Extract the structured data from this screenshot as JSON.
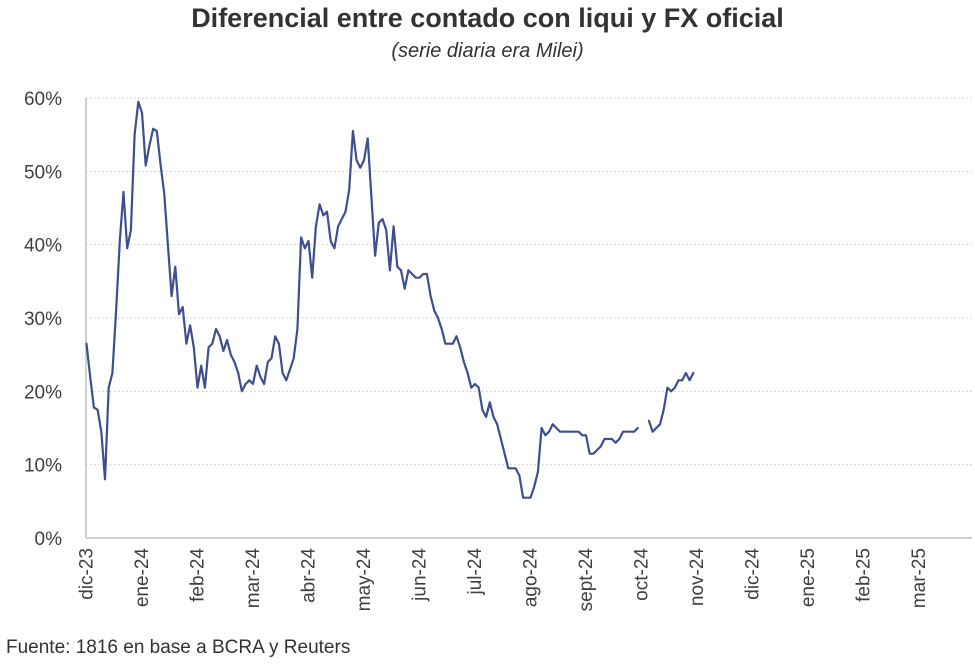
{
  "title": "Diferencial entre contado con liqui y FX oficial",
  "subtitle": "(serie diaria era Milei)",
  "source": "Fuente: 1816 en base a BCRA y Reuters",
  "chart_data": {
    "type": "line",
    "title": "Diferencial entre contado con liqui y FX oficial",
    "subtitle": "(serie diaria era Milei)",
    "xlabel": "",
    "ylabel": "",
    "y_unit": "%",
    "ylim": [
      0,
      60
    ],
    "y_ticks": [
      0,
      10,
      20,
      30,
      40,
      50,
      60
    ],
    "y_tick_labels": [
      "0%",
      "10%",
      "20%",
      "30%",
      "40%",
      "50%",
      "60%"
    ],
    "x_ticks": [
      "dic-23",
      "ene-24",
      "feb-24",
      "mar-24",
      "abr-24",
      "may-24",
      "jun-24",
      "jul-24",
      "ago-24",
      "sept-24",
      "oct-24",
      "nov-24",
      "dic-24",
      "ene-25",
      "feb-25",
      "mar-25"
    ],
    "grid": "horizontal dotted",
    "line_color": "#3d4f8f",
    "series": [
      {
        "values_by_month": [
          [
            26.5,
            22.0,
            17.8,
            17.5,
            14.5,
            8.0,
            20.5,
            22.5,
            31.0,
            40.5,
            47.2,
            39.5,
            42.0,
            55.0,
            59.5
          ],
          [
            58.0,
            50.8,
            53.5,
            55.8,
            55.5,
            51.0,
            47.0,
            40.0,
            33.0,
            37.0,
            30.5,
            31.5,
            26.5,
            29.0,
            26.0
          ],
          [
            20.5,
            23.5,
            20.5,
            26.0,
            26.5,
            28.5,
            27.5,
            25.5,
            27.0,
            25.0,
            24.0,
            22.5,
            20.0,
            21.0,
            21.5
          ],
          [
            21.0,
            23.5,
            22.0,
            21.0,
            24.0,
            24.5,
            27.5,
            26.5,
            22.5,
            21.5,
            23.0,
            24.5,
            28.5,
            41.0,
            39.5
          ],
          [
            40.5,
            35.5,
            42.5,
            45.5,
            44.0,
            44.5,
            40.5,
            39.5,
            42.5,
            43.5,
            44.5,
            47.5,
            55.5,
            51.5,
            50.5
          ],
          [
            51.5,
            54.5,
            46.5,
            38.5,
            43.0,
            43.5,
            42.0,
            36.5,
            42.5,
            37.0,
            36.5,
            34.0,
            36.5,
            36.0,
            35.5
          ],
          [
            35.5,
            36.0,
            36.0,
            33.0,
            31.0,
            30.0,
            28.5,
            26.5,
            26.5,
            26.5,
            27.5,
            26.0,
            24.0,
            22.5,
            20.5
          ],
          [
            21.0,
            20.5,
            17.5,
            16.5,
            18.5,
            16.5,
            15.5,
            13.5,
            11.5,
            9.5,
            9.5,
            9.5,
            8.5,
            5.5,
            5.5
          ],
          [
            5.5,
            7.0,
            9.0,
            15.0,
            14.0,
            14.5,
            15.5,
            15.0,
            14.5,
            14.5,
            14.5,
            14.5,
            14.5,
            14.5,
            14.0
          ],
          [
            14.0,
            11.5,
            11.5,
            12.0,
            12.5,
            13.5,
            13.5,
            13.5,
            13.0,
            13.5,
            14.5,
            14.5,
            14.5,
            14.5,
            15.0
          ],
          [
            null,
            null,
            16.0,
            14.5,
            15.0,
            15.5,
            17.5,
            20.5,
            20.0,
            20.5,
            21.5,
            21.5,
            22.5,
            21.5,
            22.5
          ]
        ]
      }
    ]
  }
}
